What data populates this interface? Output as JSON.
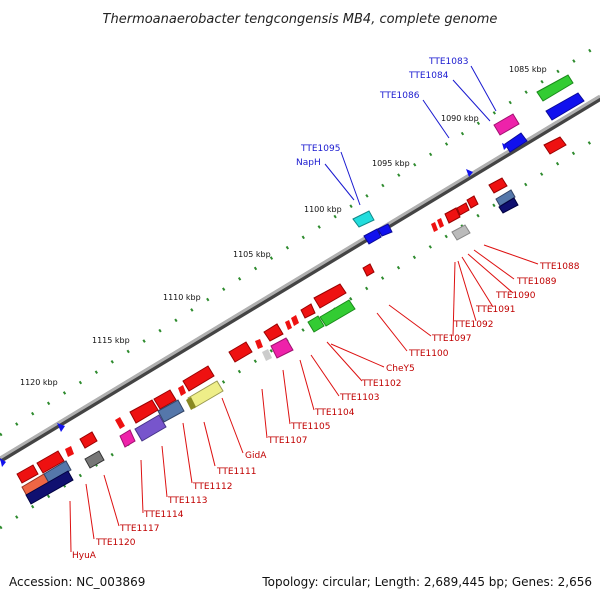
{
  "title": "Thermoanaerobacter tengcongensis MB4, complete genome",
  "footer": {
    "accession": "Accession: NC_003869",
    "info": "Topology: circular; Length: 2,689,445 bp; Genes: 2,656"
  },
  "scale_labels": [
    "1085 kbp",
    "1090 kbp",
    "1095 kbp",
    "1100 kbp",
    "1105 kbp",
    "1110 kbp",
    "1115 kbp",
    "1120 kbp"
  ],
  "colors": {
    "backbone": "#808080",
    "tick": "#2e8b2e",
    "red": "#ee1111",
    "blue": "#1111ee",
    "green": "#33cc33",
    "magenta": "#ee22aa",
    "cyan": "#22dddd",
    "navy": "#101070",
    "steel": "#5577aa",
    "purple": "#7755cc",
    "gray": "#777777",
    "lightgray": "#bbbbbb",
    "yellow": "#eeee88",
    "salmon": "#ee6644",
    "blue_label": "#1a1ad0",
    "red_label": "#c00000"
  },
  "upper_labels": [
    "TTE1083",
    "TTE1084",
    "TTE1086",
    "TTE1095",
    "NapH"
  ],
  "lower_labels": [
    "TTE1088",
    "TTE1089",
    "TTE1090",
    "TTE1091",
    "TTE1092",
    "TTE1097",
    "TTE1100",
    "CheY5",
    "TTE1102",
    "TTE1103",
    "TTE1104",
    "TTE1105",
    "TTE1107",
    "GidA",
    "TTE1111",
    "TTE1112",
    "TTE1113",
    "TTE1114",
    "TTE1117",
    "TTE1120",
    "HyuA"
  ]
}
